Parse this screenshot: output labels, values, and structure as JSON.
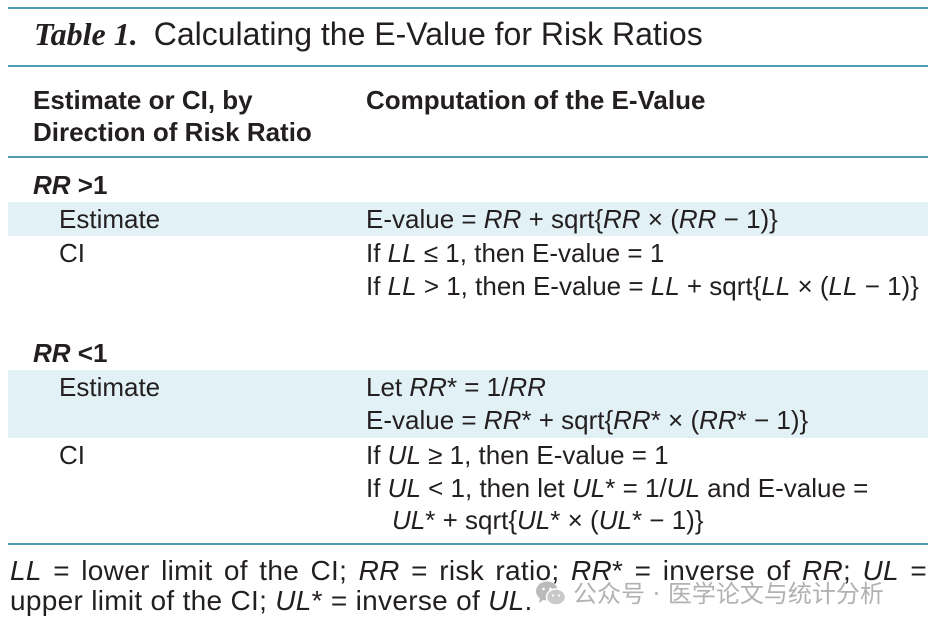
{
  "table": {
    "label": "Table 1.",
    "title": "Calculating the E-Value for Risk Ratios",
    "columns": {
      "estimate_header": [
        "Estimate or CI, by",
        "Direction of Risk Ratio"
      ],
      "computation_header": "Computation of the E-Value"
    },
    "sections": [
      {
        "heading": [
          {
            "text": "RR",
            "italic": true
          },
          {
            "text": " >1"
          }
        ],
        "rows": [
          {
            "label": "Estimate",
            "lines": [
              [
                {
                  "text": "E-value = "
                },
                {
                  "text": "RR",
                  "italic": true
                },
                {
                  "text": " + sqrt{"
                },
                {
                  "text": "RR",
                  "italic": true
                },
                {
                  "text": " × ("
                },
                {
                  "text": "RR",
                  "italic": true
                },
                {
                  "text": " − 1)}"
                }
              ]
            ]
          },
          {
            "label": "CI",
            "lines": [
              [
                {
                  "text": "If "
                },
                {
                  "text": "LL",
                  "italic": true
                },
                {
                  "text": " ≤ 1, then E-value = 1"
                }
              ],
              [
                {
                  "text": "If "
                },
                {
                  "text": "LL",
                  "italic": true
                },
                {
                  "text": " > 1, then E-value = "
                },
                {
                  "text": "LL",
                  "italic": true
                },
                {
                  "text": " + sqrt{"
                },
                {
                  "text": "LL",
                  "italic": true
                },
                {
                  "text": " × ("
                },
                {
                  "text": "LL",
                  "italic": true
                },
                {
                  "text": " − 1)}"
                }
              ]
            ]
          }
        ]
      },
      {
        "heading": [
          {
            "text": "RR",
            "italic": true
          },
          {
            "text": " <1"
          }
        ],
        "rows": [
          {
            "label": "Estimate",
            "lines": [
              [
                {
                  "text": "Let "
                },
                {
                  "text": "RR",
                  "italic": true
                },
                {
                  "text": "* = 1/"
                },
                {
                  "text": "RR",
                  "italic": true
                }
              ],
              [
                {
                  "text": "E-value = "
                },
                {
                  "text": "RR",
                  "italic": true
                },
                {
                  "text": "* + sqrt{"
                },
                {
                  "text": "RR",
                  "italic": true
                },
                {
                  "text": "* × ("
                },
                {
                  "text": "RR",
                  "italic": true
                },
                {
                  "text": "* − 1)}"
                }
              ]
            ]
          },
          {
            "label": "CI",
            "lines": [
              [
                {
                  "text": "If "
                },
                {
                  "text": "UL",
                  "italic": true
                },
                {
                  "text": " ≥ 1, then E-value = 1"
                }
              ],
              [
                {
                  "text": "If "
                },
                {
                  "text": "UL",
                  "italic": true
                },
                {
                  "text": " < 1, then let "
                },
                {
                  "text": "UL",
                  "italic": true
                },
                {
                  "text": "* = 1/"
                },
                {
                  "text": "UL",
                  "italic": true
                },
                {
                  "text": " and E-value ="
                }
              ],
              [
                {
                  "text": "UL",
                  "italic": true
                },
                {
                  "text": "* + sqrt{"
                },
                {
                  "text": "UL",
                  "italic": true
                },
                {
                  "text": "* × ("
                },
                {
                  "text": "UL",
                  "italic": true
                },
                {
                  "text": "* − 1)}"
                }
              ]
            ]
          }
        ]
      }
    ],
    "footnote": [
      [
        {
          "text": "LL",
          "italic": true
        },
        {
          "text": " = lower limit of the CI; "
        },
        {
          "text": "RR",
          "italic": true
        },
        {
          "text": " = risk ratio; "
        },
        {
          "text": "RR",
          "italic": true
        },
        {
          "text": "* = inverse of "
        },
        {
          "text": "RR",
          "italic": true
        },
        {
          "text": "; "
        },
        {
          "text": "UL",
          "italic": true
        },
        {
          "text": " ="
        }
      ],
      [
        {
          "text": "upper limit of the CI; "
        },
        {
          "text": "UL",
          "italic": true
        },
        {
          "text": "* = inverse of "
        },
        {
          "text": "UL",
          "italic": true
        },
        {
          "text": "."
        }
      ]
    ]
  },
  "colors": {
    "rule": "#4f9cb2",
    "row_shading": "#e2f1f6",
    "text": "#231f20"
  },
  "watermark": {
    "icon": "wechat-icon",
    "text": "公众号 · 医学论文与统计分析"
  }
}
